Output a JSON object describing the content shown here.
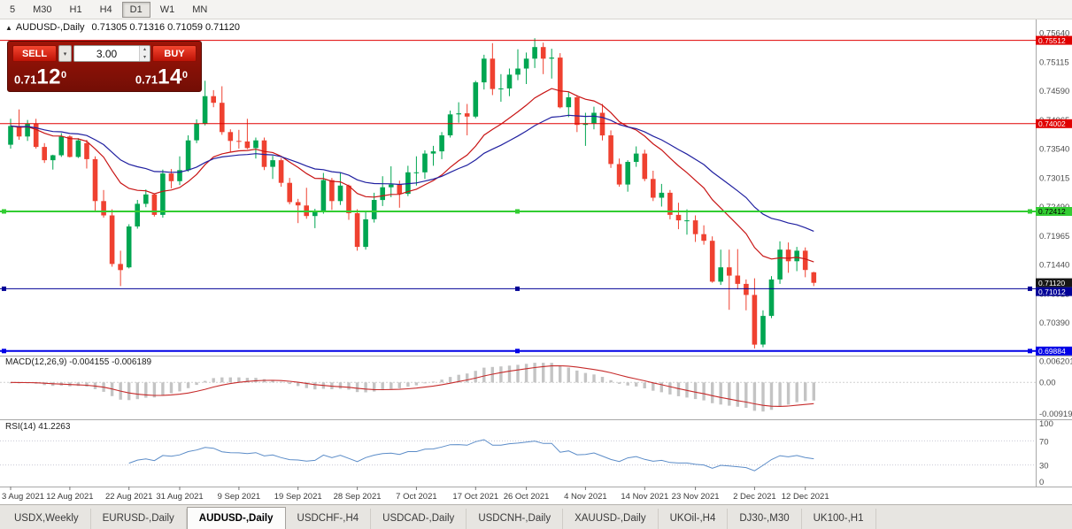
{
  "toolbar": {
    "timeframes": [
      "5",
      "M30",
      "H1",
      "H4",
      "D1",
      "W1",
      "MN"
    ],
    "active": "D1"
  },
  "chart": {
    "title": "AUDUSD-,Daily",
    "ohlc": "0.71305 0.71316 0.71059 0.71120"
  },
  "trade": {
    "sell_label": "SELL",
    "buy_label": "BUY",
    "volume": "3.00",
    "sell_price": {
      "prefix": "0.71",
      "big": "12",
      "sup": "0"
    },
    "buy_price": {
      "prefix": "0.71",
      "big": "14",
      "sup": "0"
    }
  },
  "indicators": {
    "macd_label": "MACD(12,26,9) -0.004155 -0.006189",
    "rsi_label": "RSI(14) 41.2263"
  },
  "tabs": {
    "items": [
      "USDX,Weekly",
      "EURUSD-,Daily",
      "AUDUSD-,Daily",
      "USDCHF-,H4",
      "USDCAD-,Daily",
      "USDCNH-,Daily",
      "XAUUSD-,Daily",
      "UKOil-,H4",
      "DJ30-,M30",
      "UK100-,H1"
    ],
    "active_index": 2
  },
  "chart_data": {
    "type": "candlestick",
    "symbol": "AUDUSD",
    "period": "Daily",
    "ylim": [
      0.698,
      0.7589
    ],
    "bull_color": "#00a651",
    "bear_color": "#ef4130",
    "y_axis_labels": [
      "0.75640",
      "0.75115",
      "0.74590",
      "0.74065",
      "0.73540",
      "0.73015",
      "0.72490",
      "0.71965",
      "0.71440",
      "0.70915",
      "0.70390"
    ],
    "current_price": {
      "price": 0.7112,
      "label": "0.71120",
      "color": "#151515",
      "text_color": "#ffffff"
    },
    "hlines": [
      {
        "price": 0.75512,
        "label": "0.75512",
        "color": "#e00000",
        "text_color": "#ffffff",
        "width": 1,
        "selected": false
      },
      {
        "price": 0.74002,
        "label": "0.74002",
        "color": "#e00000",
        "text_color": "#ffffff",
        "width": 1,
        "selected": false
      },
      {
        "price": 0.72412,
        "label": "0.72412",
        "color": "#32cd32",
        "text_color": "#000000",
        "width": 2,
        "selected": true
      },
      {
        "price": 0.71012,
        "label": "0.71012",
        "color": "#000096",
        "text_color": "#ffffff",
        "width": 1,
        "selected": true
      },
      {
        "price": 0.69884,
        "label": "0.69884",
        "color": "#0000e6",
        "text_color": "#ffffff",
        "width": 2,
        "selected": true
      }
    ],
    "x_tick_labels": [
      "3 Aug 2021",
      "12 Aug 2021",
      "22 Aug 2021",
      "31 Aug 2021",
      "9 Sep 2021",
      "19 Sep 2021",
      "28 Sep 2021",
      "7 Oct 2021",
      "17 Oct 2021",
      "26 Oct 2021",
      "4 Nov 2021",
      "14 Nov 2021",
      "23 Nov 2021",
      "2 Dec 2021",
      "12 Dec 2021"
    ],
    "x_tick_indices": [
      0,
      7,
      14,
      20,
      27,
      34,
      41,
      48,
      55,
      61,
      68,
      75,
      81,
      88,
      94
    ],
    "ma_fast": {
      "period": 15,
      "color": "#c81414"
    },
    "ma_slow": {
      "period": 30,
      "color": "#2020a0"
    },
    "macd": {
      "fast": 12,
      "slow": 26,
      "signal": 9,
      "hist_color": "#c4c4c4",
      "signal_color": "#c62b2b",
      "ylim": [
        -0.01,
        0.0068
      ],
      "axis_labels": [
        "0.006201",
        "0.00",
        "-0.009197"
      ]
    },
    "rsi": {
      "period": 14,
      "color": "#5b8cc8",
      "levels": [
        70,
        30
      ],
      "axis_labels": [
        "100",
        "70",
        "30",
        "0"
      ],
      "value": "41.2263"
    },
    "candles": [
      [
        0.7362,
        0.7409,
        0.7355,
        0.7396
      ],
      [
        0.7396,
        0.7426,
        0.7371,
        0.7377
      ],
      [
        0.7377,
        0.7407,
        0.7369,
        0.74
      ],
      [
        0.74,
        0.7409,
        0.7355,
        0.7358
      ],
      [
        0.7358,
        0.7365,
        0.7329,
        0.7334
      ],
      [
        0.7334,
        0.7344,
        0.7317,
        0.7343
      ],
      [
        0.7343,
        0.7383,
        0.734,
        0.7377
      ],
      [
        0.7377,
        0.7379,
        0.7339,
        0.734
      ],
      [
        0.734,
        0.7374,
        0.7338,
        0.737
      ],
      [
        0.7365,
        0.7371,
        0.7319,
        0.7336
      ],
      [
        0.7336,
        0.7341,
        0.724,
        0.726
      ],
      [
        0.726,
        0.728,
        0.723,
        0.7234
      ],
      [
        0.7234,
        0.7245,
        0.7141,
        0.7146
      ],
      [
        0.7146,
        0.717,
        0.7106,
        0.7135
      ],
      [
        0.714,
        0.7218,
        0.7138,
        0.7214
      ],
      [
        0.7214,
        0.7262,
        0.721,
        0.7255
      ],
      [
        0.7255,
        0.7281,
        0.7249,
        0.7272
      ],
      [
        0.7272,
        0.7274,
        0.7232,
        0.7235
      ],
      [
        0.7235,
        0.7317,
        0.723,
        0.731
      ],
      [
        0.731,
        0.7318,
        0.7283,
        0.7296
      ],
      [
        0.7296,
        0.7341,
        0.7289,
        0.7316
      ],
      [
        0.7316,
        0.7379,
        0.7313,
        0.737
      ],
      [
        0.737,
        0.7408,
        0.7365,
        0.74
      ],
      [
        0.74,
        0.7478,
        0.7397,
        0.745
      ],
      [
        0.745,
        0.7461,
        0.743,
        0.7438
      ],
      [
        0.7438,
        0.7468,
        0.738,
        0.7385
      ],
      [
        0.7385,
        0.739,
        0.7348,
        0.7369
      ],
      [
        0.7369,
        0.7389,
        0.7355,
        0.7368
      ],
      [
        0.7368,
        0.7409,
        0.7354,
        0.7356
      ],
      [
        0.7356,
        0.7375,
        0.7337,
        0.737
      ],
      [
        0.737,
        0.7375,
        0.7316,
        0.7322
      ],
      [
        0.7322,
        0.7342,
        0.73,
        0.7334
      ],
      [
        0.7334,
        0.7338,
        0.7286,
        0.7293
      ],
      [
        0.7293,
        0.7302,
        0.7254,
        0.7258
      ],
      [
        0.7258,
        0.7264,
        0.722,
        0.7252
      ],
      [
        0.7252,
        0.7284,
        0.7228,
        0.7233
      ],
      [
        0.7233,
        0.7246,
        0.7211,
        0.724
      ],
      [
        0.724,
        0.7311,
        0.7237,
        0.7298
      ],
      [
        0.7298,
        0.7302,
        0.7244,
        0.726
      ],
      [
        0.726,
        0.7312,
        0.7253,
        0.7288
      ],
      [
        0.7288,
        0.729,
        0.7226,
        0.7238
      ],
      [
        0.7238,
        0.7245,
        0.717,
        0.7177
      ],
      [
        0.7177,
        0.7241,
        0.7172,
        0.7227
      ],
      [
        0.7227,
        0.7275,
        0.7221,
        0.7262
      ],
      [
        0.7262,
        0.7305,
        0.7251,
        0.7285
      ],
      [
        0.7285,
        0.7323,
        0.7267,
        0.729
      ],
      [
        0.729,
        0.7297,
        0.7248,
        0.7273
      ],
      [
        0.7273,
        0.7324,
        0.7269,
        0.7312
      ],
      [
        0.7312,
        0.7341,
        0.7288,
        0.7312
      ],
      [
        0.7312,
        0.7352,
        0.73,
        0.7346
      ],
      [
        0.7346,
        0.736,
        0.7324,
        0.735
      ],
      [
        0.735,
        0.7385,
        0.7336,
        0.7379
      ],
      [
        0.7379,
        0.7424,
        0.7375,
        0.7417
      ],
      [
        0.7417,
        0.7439,
        0.7402,
        0.7419
      ],
      [
        0.7419,
        0.7436,
        0.7379,
        0.7413
      ],
      [
        0.7413,
        0.7478,
        0.741,
        0.7475
      ],
      [
        0.7475,
        0.7525,
        0.7462,
        0.7518
      ],
      [
        0.7518,
        0.7546,
        0.7452,
        0.7463
      ],
      [
        0.7463,
        0.749,
        0.744,
        0.7464
      ],
      [
        0.7464,
        0.75,
        0.745,
        0.7489
      ],
      [
        0.7489,
        0.7535,
        0.7479,
        0.75
      ],
      [
        0.75,
        0.7529,
        0.7472,
        0.7518
      ],
      [
        0.7518,
        0.7555,
        0.7501,
        0.7539
      ],
      [
        0.7539,
        0.7547,
        0.749,
        0.7518
      ],
      [
        0.7518,
        0.7536,
        0.7482,
        0.752
      ],
      [
        0.752,
        0.7528,
        0.7428,
        0.743
      ],
      [
        0.743,
        0.7458,
        0.7412,
        0.7448
      ],
      [
        0.7448,
        0.7452,
        0.7385,
        0.7398
      ],
      [
        0.7398,
        0.742,
        0.736,
        0.7401
      ],
      [
        0.7401,
        0.7431,
        0.739,
        0.742
      ],
      [
        0.742,
        0.7436,
        0.737,
        0.7379
      ],
      [
        0.7379,
        0.7388,
        0.732,
        0.7327
      ],
      [
        0.7327,
        0.7337,
        0.7286,
        0.729
      ],
      [
        0.729,
        0.7334,
        0.7277,
        0.7331
      ],
      [
        0.7331,
        0.7359,
        0.7322,
        0.7346
      ],
      [
        0.7346,
        0.7353,
        0.7296,
        0.73
      ],
      [
        0.73,
        0.7315,
        0.726,
        0.7266
      ],
      [
        0.7266,
        0.7291,
        0.725,
        0.7275
      ],
      [
        0.7275,
        0.728,
        0.7227,
        0.7235
      ],
      [
        0.7235,
        0.7257,
        0.7209,
        0.7225
      ],
      [
        0.7225,
        0.7245,
        0.7199,
        0.7225
      ],
      [
        0.7225,
        0.7234,
        0.7186,
        0.72
      ],
      [
        0.72,
        0.7216,
        0.7181,
        0.7188
      ],
      [
        0.7188,
        0.7196,
        0.7112,
        0.7114
      ],
      [
        0.7114,
        0.7172,
        0.7108,
        0.714
      ],
      [
        0.714,
        0.7172,
        0.7063,
        0.7125
      ],
      [
        0.7125,
        0.7173,
        0.71,
        0.711
      ],
      [
        0.711,
        0.7118,
        0.7062,
        0.709
      ],
      [
        0.709,
        0.712,
        0.6993,
        0.7
      ],
      [
        0.7,
        0.7062,
        0.6995,
        0.7052
      ],
      [
        0.7052,
        0.7124,
        0.7048,
        0.7118
      ],
      [
        0.7118,
        0.7187,
        0.711,
        0.7172
      ],
      [
        0.7172,
        0.7185,
        0.713,
        0.7151
      ],
      [
        0.7151,
        0.7177,
        0.7133,
        0.717
      ],
      [
        0.717,
        0.7176,
        0.7122,
        0.7135
      ],
      [
        0.7131,
        0.7132,
        0.7106,
        0.7112
      ]
    ]
  }
}
